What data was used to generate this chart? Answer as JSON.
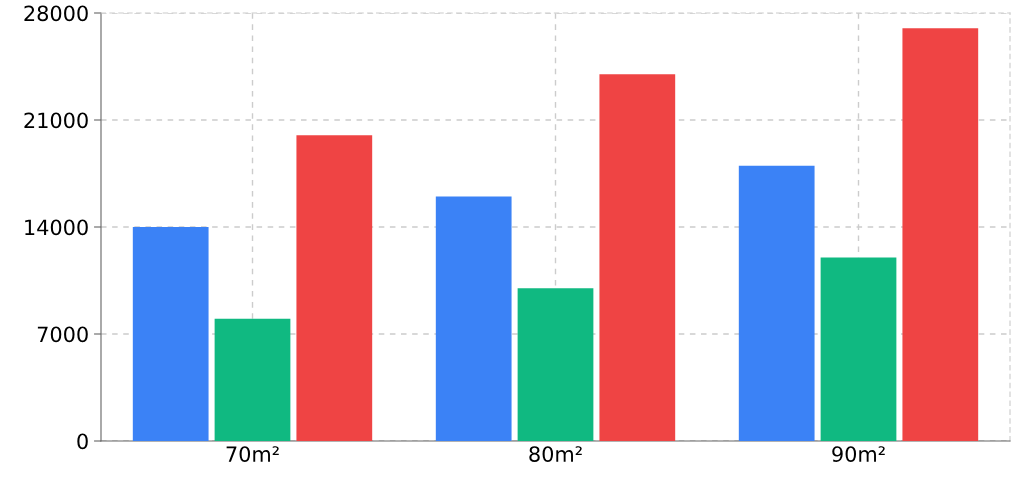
{
  "chart_data": {
    "type": "bar",
    "categories": [
      "70m²",
      "80m²",
      "90m²"
    ],
    "series": [
      {
        "color": "#3b82f6",
        "values": [
          14000,
          16000,
          18000
        ]
      },
      {
        "color": "#10b981",
        "values": [
          8000,
          10000,
          12000
        ]
      },
      {
        "color": "#ef4444",
        "values": [
          20000,
          24000,
          27000
        ]
      }
    ],
    "ylim": [
      0,
      28000
    ],
    "yticks": [
      0,
      7000,
      14000,
      21000,
      28000
    ],
    "grid": true,
    "legend": false
  }
}
